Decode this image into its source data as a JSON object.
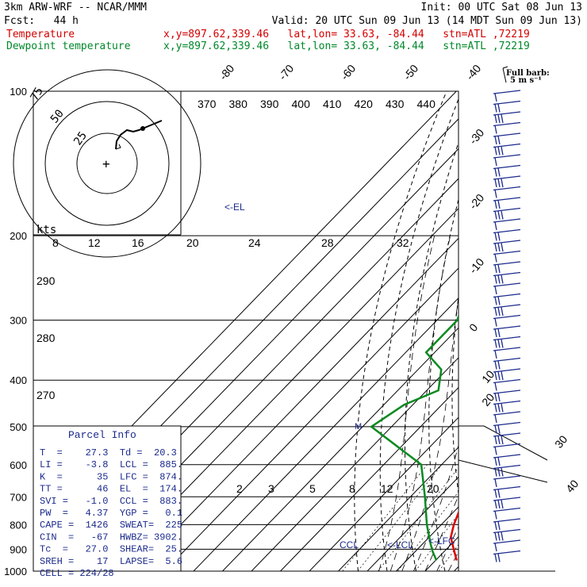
{
  "header": {
    "model": "3km ARW-WRF -- NCAR/MMM",
    "init": "Init: 00 UTC Sat 08 Jun 13",
    "fcst": "Fcst:   44 h",
    "valid": "Valid: 20 UTC Sun 09 Jun 13 (14 MDT Sun 09 Jun 13)",
    "temp_label": "Temperature",
    "temp_loc": "x,y=897.62,339.46   lat,lon= 33.63, -84.44   stn=ATL ,72219",
    "dew_label": "Dewpoint temperature",
    "dew_loc": "x,y=897.62,339.46   lat,lon= 33.63, -84.44   stn=ATL ,72219"
  },
  "colors": {
    "temperature": "#e00000",
    "dewpoint": "#0a8a1f",
    "isobar": "#000000",
    "barb": "#1b2a8c",
    "annotation": "#1b2a8c"
  },
  "chart_data": {
    "type": "line",
    "skew_t": true,
    "pressure_levels": [
      100,
      200,
      300,
      400,
      500,
      600,
      700,
      800,
      900,
      1000
    ],
    "series": [
      {
        "name": "Temperature",
        "points": [
          [
            100,
            -70.5
          ],
          [
            150,
            -62
          ],
          [
            170,
            -60
          ],
          [
            200,
            -54
          ],
          [
            250,
            -46
          ],
          [
            300,
            -36
          ],
          [
            350,
            -27
          ],
          [
            400,
            -17
          ],
          [
            500,
            -6
          ],
          [
            600,
            3
          ],
          [
            700,
            8.8
          ],
          [
            800,
            14.3
          ],
          [
            850,
            17.5
          ],
          [
            900,
            22.5
          ],
          [
            950,
            27.3
          ]
        ]
      },
      {
        "name": "Dewpoint temperature",
        "points": [
          [
            100,
            -89
          ],
          [
            130,
            -84
          ],
          [
            150,
            -87
          ],
          [
            170,
            -84
          ],
          [
            200,
            -76
          ],
          [
            250,
            -61
          ],
          [
            300,
            -53
          ],
          [
            350,
            -53
          ],
          [
            380,
            -42
          ],
          [
            420,
            -36
          ],
          [
            450,
            -43
          ],
          [
            500,
            -47
          ],
          [
            600,
            -17
          ],
          [
            700,
            -5
          ],
          [
            800,
            5
          ],
          [
            880,
            13
          ],
          [
            910,
            16
          ],
          [
            950,
            20.3
          ]
        ]
      }
    ],
    "isotherm_labels": [
      "-80",
      "-70",
      "-60",
      "-50",
      "-40",
      "-30",
      "-20",
      "-10",
      "0",
      "10",
      "20",
      "30",
      "40"
    ],
    "mixing_ratio_labels": [
      "2",
      "3",
      "5",
      "8",
      "12",
      "20"
    ],
    "theta_labels": [
      "370",
      "380",
      "390",
      "400",
      "410",
      "420",
      "430",
      "440"
    ],
    "theta_lower_labels": [
      "290",
      "280",
      "270"
    ],
    "parcel_labels": {
      "el": "<-EL",
      "ccl": "CCL",
      "lcl": "<-LCL",
      "lfc": "<-LFC",
      "m": "M"
    },
    "hodograph": {
      "unit": "kts",
      "rings": [
        "25",
        "50",
        "75"
      ],
      "speed_labels": [
        "8",
        "12",
        "16",
        "20",
        "24",
        "28",
        "32"
      ]
    },
    "barb_key": {
      "title": "Full barb:",
      "value": "5 m s⁻¹"
    },
    "parcel_info": {
      "title": "Parcel Info",
      "rows": [
        "T  =    27.3  Td =  20.3",
        "LI =    -3.8  LCL =  885.",
        "K  =      35  LFC =  874.",
        "TT =      46  EL  =  174.",
        "SVI =   -1.0  CCL =  883.",
        "PW  =   4.37  YGP =   0.1",
        "CAPE =  1426  SWEAT=  225",
        "CIN  =   -67  HWBZ= 3902.",
        "Tc  =   27.0  SHEAR=  25.",
        "SREH =    17  LAPSE=  5.6",
        "CELL = 224/28"
      ]
    }
  }
}
